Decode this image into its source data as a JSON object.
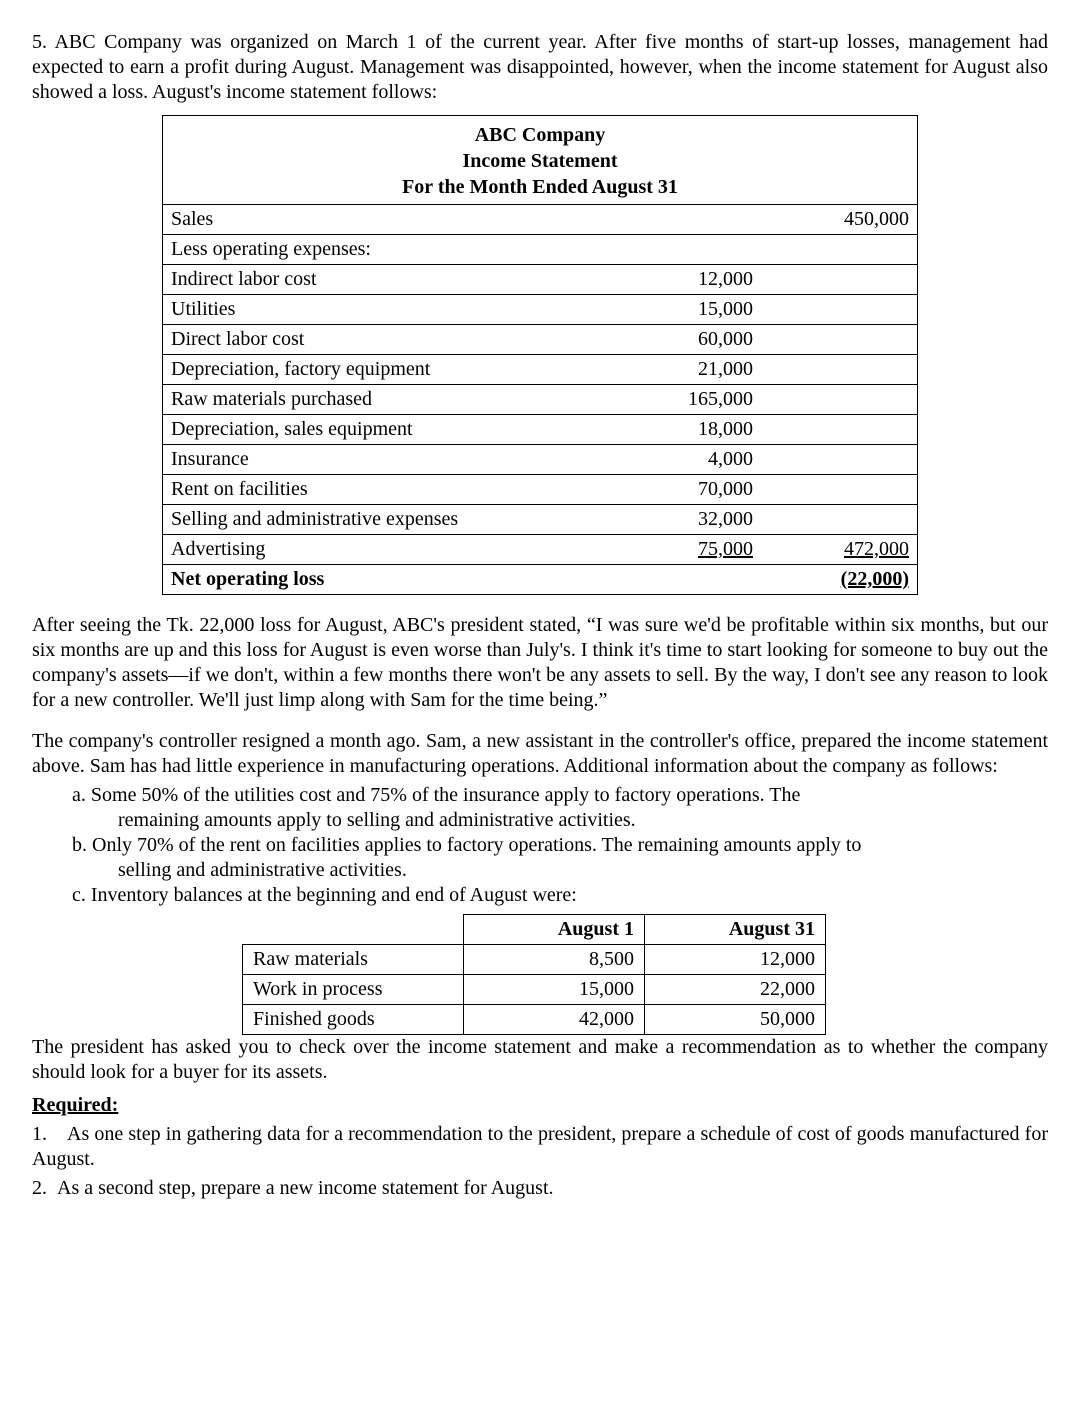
{
  "intro": "5. ABC Company was organized on March 1 of the current year. After five months of start-up losses, management had expected to earn a profit during August. Management was disappointed, however, when the income statement for August also showed a loss. August's income statement follows:",
  "statement": {
    "h1": "ABC Company",
    "h2": "Income Statement",
    "h3": "For the Month Ended August 31",
    "rows": [
      {
        "label": "Sales",
        "c1": "",
        "c2": "450,000"
      },
      {
        "label": "Less operating expenses:",
        "c1": "",
        "c2": ""
      },
      {
        "label": "Indirect labor cost",
        "c1": "12,000",
        "c2": ""
      },
      {
        "label": "Utilities",
        "c1": "15,000",
        "c2": ""
      },
      {
        "label": "Direct labor cost",
        "c1": "60,000",
        "c2": ""
      },
      {
        "label": "Depreciation, factory equipment",
        "c1": "21,000",
        "c2": ""
      },
      {
        "label": "Raw materials purchased",
        "c1": "165,000",
        "c2": ""
      },
      {
        "label": "Depreciation, sales equipment",
        "c1": "18,000",
        "c2": ""
      },
      {
        "label": "Insurance",
        "c1": "4,000",
        "c2": ""
      },
      {
        "label": "Rent on facilities",
        "c1": "70,000",
        "c2": ""
      },
      {
        "label": "Selling and administrative expenses",
        "c1": "32,000",
        "c2": ""
      }
    ],
    "adv": {
      "label": "Advertising",
      "c1": "75,000",
      "c2": "472,000"
    },
    "loss": {
      "label": "Net operating loss",
      "c1": "",
      "c2": "(22,000)"
    }
  },
  "para2": "After seeing the Tk. 22,000 loss for August, ABC's president stated, “I was sure we'd be profitable within six months, but our six months are up and this loss for August is even worse than July's. I think it's time to start looking for someone to buy out the company's assets—if we don't, within a few months there won't be any assets to sell. By the way, I don't see any reason to look for a new controller. We'll just limp along with Sam for the time being.”",
  "para3": "The company's controller resigned a month ago. Sam, a new assistant in the controller's office, prepared the income statement above. Sam has had little experience in manufacturing operations. Additional information about the company as follows:",
  "info": {
    "a1": "Some 50% of the utilities cost and 75% of the insurance apply to factory operations. The",
    "a2": "remaining amounts apply to selling and administrative activities.",
    "b1": "Only 70% of the rent on facilities applies to factory operations. The remaining amounts apply to",
    "b2": "selling and administrative activities.",
    "c": "Inventory balances at the beginning and end of August were:"
  },
  "inv": {
    "h1": "August 1",
    "h2": "August 31",
    "rows": [
      {
        "l": "Raw materials",
        "a": "8,500",
        "b": "12,000"
      },
      {
        "l": "Work in process",
        "a": "15,000",
        "b": "22,000"
      },
      {
        "l": "Finished goods",
        "a": "42,000",
        "b": "50,000"
      }
    ]
  },
  "para4": "The president has asked you to check over the income statement and make a recommendation as to whether the company should look for a buyer for its assets.",
  "req_label": "Required:",
  "req1": "1. As one step in gathering data for a recommendation to the president, prepare a schedule of cost of goods manufactured for August.",
  "req2": "2. As a second step, prepare a new income statement for August."
}
